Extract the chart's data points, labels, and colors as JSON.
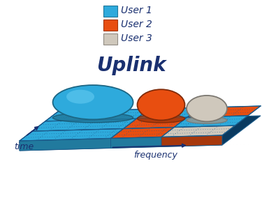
{
  "title": "Uplink",
  "title_fontsize": 20,
  "title_style": "italic",
  "title_weight": "bold",
  "title_color": "#1a3070",
  "legend_entries": [
    "User 1",
    "User 2",
    "User 3"
  ],
  "user_colors": [
    "#2eaadc",
    "#e84e10",
    "#cfc8bc"
  ],
  "user_colors_dark": [
    "#1878a8",
    "#b03008",
    "#a09888"
  ],
  "bg_color": "#ffffff",
  "xlabel": "frequency",
  "ylabel": "time",
  "axis_label_color": "#1a3070",
  "slab_edge_color": "#1a5a8a",
  "slab_blue_dark": "#1878a8",
  "slab_blue_side": "#1060a0"
}
